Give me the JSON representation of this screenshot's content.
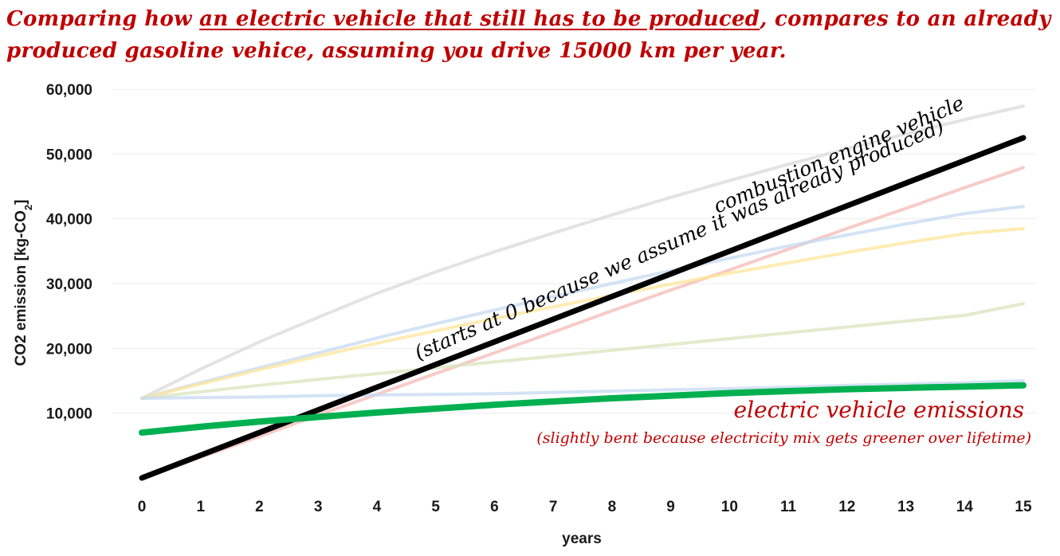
{
  "title": {
    "part1": "Comparing how ",
    "part2_underlined": "an electric vehicle that still has to be produced",
    "part3": ", compares to an already produced gasoline vehice, assuming you drive 15000 km per year."
  },
  "chart_data": {
    "type": "line",
    "xlabel": "years",
    "ylabel": "CO2 emission [kg-CO",
    "ylabel_subscript": "2",
    "ylabel_suffix": "]",
    "x": [
      0,
      1,
      2,
      3,
      4,
      5,
      6,
      7,
      8,
      9,
      10,
      11,
      12,
      13,
      14,
      15
    ],
    "x_ticks": [
      "0",
      "1",
      "2",
      "3",
      "4",
      "5",
      "6",
      "7",
      "8",
      "9",
      "10",
      "11",
      "12",
      "13",
      "14",
      "15"
    ],
    "y_ticks": [
      "10,000",
      "20,000",
      "30,000",
      "40,000",
      "50,000",
      "60,000"
    ],
    "ylim": [
      0,
      60000
    ],
    "grid": true,
    "series": [
      {
        "color": "#d9d9d9",
        "faded": true,
        "values": [
          12300,
          16800,
          21000,
          24800,
          28500,
          31800,
          34900,
          37800,
          40600,
          43300,
          45900,
          48400,
          50800,
          53100,
          55300,
          57400
        ]
      },
      {
        "color": "#f4b9b4",
        "faded": true,
        "values": [
          0,
          3200,
          6400,
          9700,
          12900,
          16100,
          19300,
          22500,
          25800,
          29000,
          32100,
          35300,
          38500,
          41600,
          44800,
          47900
        ]
      },
      {
        "color": "#c5d9f1",
        "faded": true,
        "values": [
          12300,
          14700,
          17000,
          19300,
          21600,
          23800,
          25900,
          28000,
          30000,
          32000,
          33900,
          35800,
          37500,
          39200,
          40800,
          41900
        ]
      },
      {
        "color": "#ffe699",
        "faded": true,
        "values": [
          12300,
          14500,
          16700,
          18800,
          20800,
          22700,
          24600,
          26400,
          28200,
          29900,
          31600,
          33200,
          34800,
          36300,
          37700,
          38500
        ]
      },
      {
        "color": "#d8e4bc",
        "faded": true,
        "values": [
          12300,
          13300,
          14300,
          15200,
          16100,
          17000,
          17900,
          18800,
          19700,
          20600,
          21500,
          22400,
          23300,
          24200,
          25100,
          26900
        ]
      },
      {
        "color": "#c5d9f1",
        "faded": true,
        "values": [
          12300,
          12400,
          12500,
          12700,
          12800,
          12900,
          13000,
          13200,
          13400,
          13600,
          13800,
          14000,
          14300,
          14500,
          14700,
          15000
        ]
      },
      {
        "color": "#000000",
        "faded": false,
        "width": 7,
        "values": [
          0,
          3500,
          7000,
          10500,
          14000,
          17500,
          21000,
          24500,
          28000,
          31500,
          35000,
          38500,
          42000,
          45500,
          49000,
          52500
        ]
      },
      {
        "color": "#00b050",
        "faded": false,
        "width": 8,
        "values": [
          7000,
          7900,
          8700,
          9400,
          10100,
          10700,
          11300,
          11800,
          12300,
          12700,
          13100,
          13400,
          13700,
          13900,
          14100,
          14300
        ]
      }
    ],
    "annotations": {
      "combustion_label": "combustion engine vehicle",
      "combustion_sub": "(starts at 0 because we assume it was already produced)",
      "ev_label": "electric vehicle emissions",
      "ev_sub": "(slightly bent because electricity mix gets greener over lifetime)"
    }
  }
}
